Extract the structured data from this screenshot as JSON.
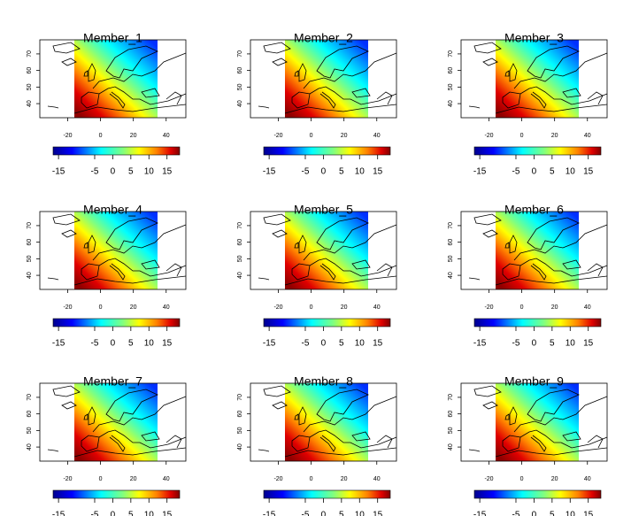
{
  "panels": [
    {
      "title": "Member_1"
    },
    {
      "title": "Member_2"
    },
    {
      "title": "Member_3"
    },
    {
      "title": "Member_4"
    },
    {
      "title": "Member_5"
    },
    {
      "title": "Member_6"
    },
    {
      "title": "Member_7"
    },
    {
      "title": "Member_8"
    },
    {
      "title": "Member_9"
    }
  ],
  "map_axes": {
    "xlim": [
      -37,
      52
    ],
    "ylim": [
      31.5,
      78.5
    ],
    "xticks": [
      -20,
      0,
      20,
      40
    ],
    "yticks": [
      40,
      50,
      60,
      70
    ]
  },
  "colorbar": {
    "clim": [
      -16.5,
      18.5
    ],
    "ticks": [
      -15,
      -5,
      0,
      5,
      10,
      15
    ]
  }
}
